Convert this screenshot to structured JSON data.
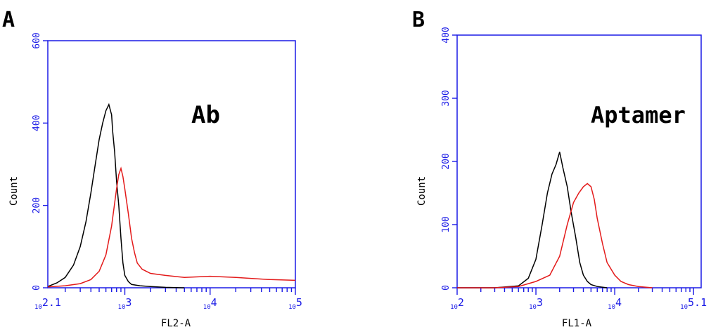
{
  "chart_data": [
    {
      "type": "line",
      "panel_label": "A",
      "annotation": "Ab",
      "xlabel": "FL2-A",
      "ylabel": "Count",
      "x_scale": "log",
      "xlim": [
        125,
        100000
      ],
      "ylim": [
        0,
        600
      ],
      "x_tick_labels": [
        "10^2.1",
        "10^3",
        "10^4",
        "10^5"
      ],
      "y_ticks": [
        0,
        200,
        400,
        600
      ],
      "grid": false,
      "colors": {
        "axis": "#1a1ae6",
        "control": "#000000",
        "sample": "#e31a1a"
      },
      "series": [
        {
          "color": "#000000",
          "x": [
            125,
            160,
            200,
            250,
            300,
            350,
            400,
            450,
            500,
            550,
            600,
            650,
            700,
            720,
            760,
            800,
            850,
            900,
            950,
            1000,
            1100,
            1200,
            1500,
            2000,
            3000,
            5000
          ],
          "y": [
            3,
            12,
            25,
            55,
            100,
            160,
            230,
            300,
            360,
            400,
            430,
            445,
            420,
            380,
            330,
            260,
            200,
            120,
            60,
            30,
            15,
            8,
            5,
            3,
            1,
            0
          ]
        },
        {
          "color": "#e31a1a",
          "x": [
            125,
            200,
            300,
            400,
            500,
            600,
            700,
            800,
            850,
            900,
            950,
            1000,
            1100,
            1200,
            1300,
            1400,
            1600,
            2000,
            3000,
            5000,
            10000,
            20000,
            50000,
            100000
          ],
          "y": [
            2,
            5,
            10,
            20,
            40,
            80,
            150,
            240,
            275,
            290,
            270,
            240,
            180,
            120,
            85,
            60,
            45,
            35,
            30,
            25,
            28,
            25,
            20,
            18
          ]
        }
      ]
    },
    {
      "type": "line",
      "panel_label": "B",
      "annotation": "Aptamer",
      "xlabel": "FL1-A",
      "ylabel": "Count",
      "x_scale": "log",
      "xlim": [
        100,
        125000
      ],
      "ylim": [
        0,
        400
      ],
      "x_tick_labels": [
        "10^2",
        "10^3",
        "10^4",
        "10^5.1"
      ],
      "y_ticks": [
        0,
        100,
        200,
        300,
        400
      ],
      "grid": false,
      "colors": {
        "axis": "#1a1ae6",
        "control": "#000000",
        "sample": "#e31a1a"
      },
      "series": [
        {
          "color": "#000000",
          "x": [
            100,
            300,
            600,
            800,
            1000,
            1200,
            1400,
            1600,
            1800,
            2000,
            2200,
            2500,
            2800,
            3200,
            3600,
            4000,
            4500,
            5000,
            6000,
            8000
          ],
          "y": [
            0,
            0,
            3,
            15,
            45,
            100,
            150,
            180,
            195,
            215,
            190,
            160,
            120,
            80,
            40,
            20,
            10,
            5,
            2,
            0
          ]
        },
        {
          "color": "#e31a1a",
          "x": [
            100,
            300,
            600,
            1000,
            1500,
            2000,
            2500,
            3000,
            3500,
            4000,
            4500,
            5000,
            5500,
            6000,
            7000,
            8000,
            10000,
            12000,
            15000,
            20000,
            30000
          ],
          "y": [
            0,
            0,
            2,
            10,
            20,
            50,
            100,
            135,
            150,
            160,
            165,
            160,
            140,
            110,
            70,
            40,
            20,
            10,
            5,
            2,
            0
          ]
        }
      ]
    }
  ]
}
